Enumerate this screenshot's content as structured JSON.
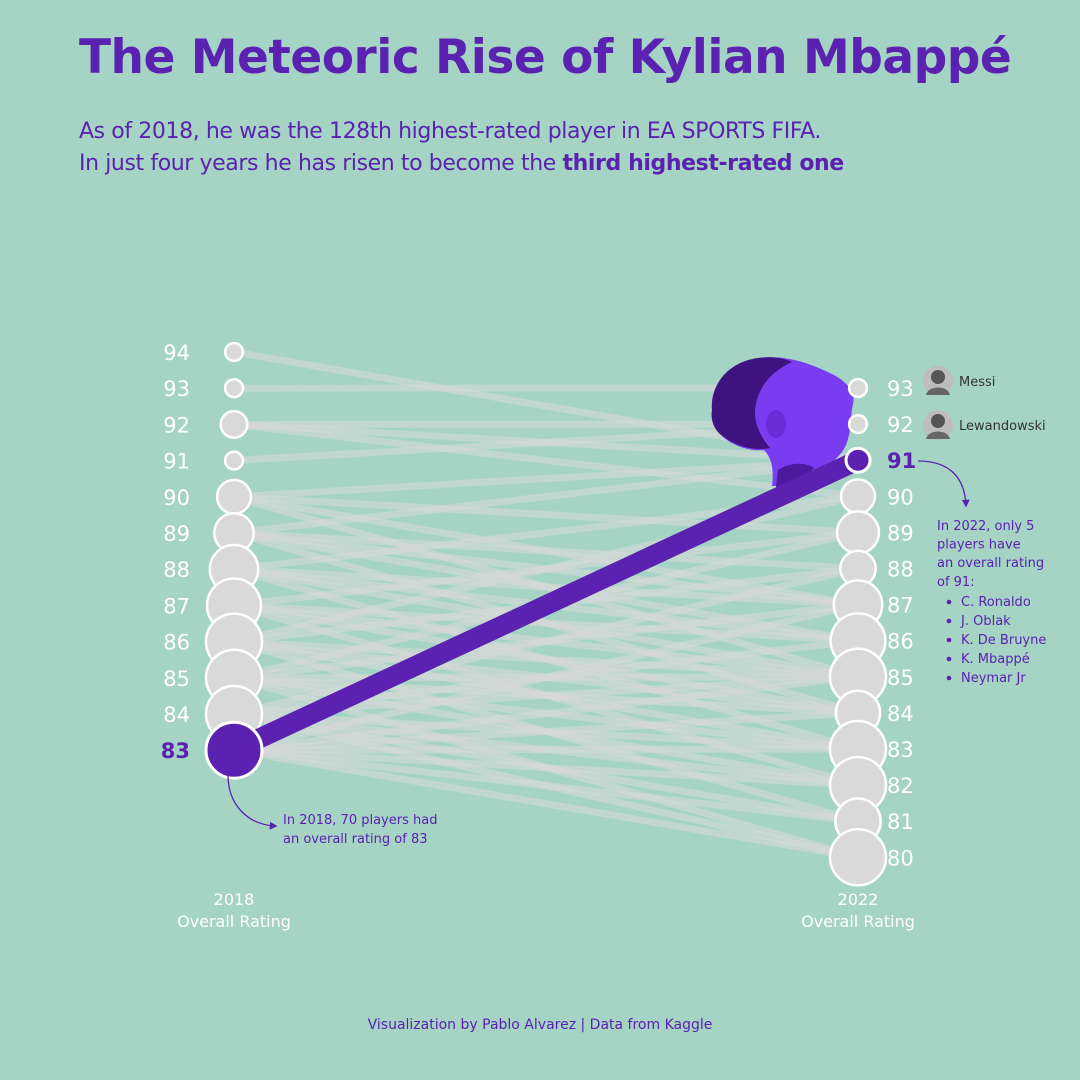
{
  "title": "The Meteoric Rise of Kylian Mbappé",
  "subtitle": {
    "line1": "As of 2018, he was the 128th highest-rated player in EA SPORTS FIFA.",
    "line2_prefix": "In just four years he has risen to become the ",
    "line2_bold": "third highest-rated one"
  },
  "footer": "Visualization by Pablo Alvarez | Data from Kaggle",
  "colors": {
    "background": "#a5d4c5",
    "accent": "#5b21b0",
    "node": "#d9d9d9",
    "link": "#d9d9d9",
    "text_light": "#ffffff"
  },
  "chart_data": {
    "type": "slope",
    "left_axis": {
      "line1": "2018",
      "line2": "Overall Rating",
      "ratings": [
        94,
        93,
        92,
        91,
        90,
        89,
        88,
        87,
        86,
        85,
        84,
        83
      ]
    },
    "right_axis": {
      "line1": "2022",
      "line2": "Overall Rating",
      "ratings": [
        93,
        92,
        91,
        90,
        89,
        88,
        87,
        86,
        85,
        84,
        83,
        82,
        81,
        80
      ]
    },
    "highlight": {
      "player": "K. Mbappé",
      "from": 83,
      "to": 91
    },
    "left_node_level": {
      "94": 1,
      "93": 1,
      "92": 4,
      "91": 1,
      "90": 8,
      "89": 12,
      "88": 20,
      "87": 26,
      "86": 35,
      "85": 40,
      "84": 60,
      "83": 70
    },
    "right_node_level": {
      "93": 1,
      "92": 1,
      "91": 5,
      "90": 8,
      "89": 14,
      "88": 9,
      "87": 20,
      "86": 27,
      "85": 40,
      "84": 16,
      "83": 31,
      "82": 35,
      "81": 17,
      "80": 36
    },
    "connections": [
      [
        94,
        91
      ],
      [
        93,
        93
      ],
      [
        92,
        92
      ],
      [
        92,
        91
      ],
      [
        92,
        90
      ],
      [
        91,
        92
      ],
      [
        90,
        91
      ],
      [
        90,
        89
      ],
      [
        90,
        87
      ],
      [
        90,
        85
      ],
      [
        89,
        91
      ],
      [
        89,
        88
      ],
      [
        89,
        87
      ],
      [
        89,
        86
      ],
      [
        89,
        84
      ],
      [
        88,
        90
      ],
      [
        88,
        87
      ],
      [
        88,
        86
      ],
      [
        88,
        85
      ],
      [
        88,
        83
      ],
      [
        87,
        89
      ],
      [
        87,
        86
      ],
      [
        87,
        85
      ],
      [
        87,
        84
      ],
      [
        87,
        82
      ],
      [
        86,
        90
      ],
      [
        86,
        88
      ],
      [
        86,
        85
      ],
      [
        86,
        84
      ],
      [
        86,
        83
      ],
      [
        86,
        81
      ],
      [
        85,
        89
      ],
      [
        85,
        87
      ],
      [
        85,
        85
      ],
      [
        85,
        84
      ],
      [
        85,
        83
      ],
      [
        85,
        82
      ],
      [
        85,
        80
      ],
      [
        84,
        88
      ],
      [
        84,
        86
      ],
      [
        84,
        85
      ],
      [
        84,
        83
      ],
      [
        84,
        82
      ],
      [
        84,
        81
      ],
      [
        84,
        80
      ],
      [
        83,
        87
      ],
      [
        83,
        85
      ],
      [
        83,
        84
      ],
      [
        83,
        83
      ],
      [
        83,
        82
      ],
      [
        83,
        81
      ],
      [
        83,
        80
      ]
    ],
    "players": [
      {
        "name": "Messi",
        "rating": 93
      },
      {
        "name": "Lewandowski",
        "rating": 92
      }
    ],
    "annotations": {
      "left": [
        "In 2018, 70 players had",
        "an overall rating of 83"
      ],
      "right_intro": [
        "In 2022, only 5",
        "players have",
        "an overall rating",
        "of 91:"
      ],
      "right_list": [
        "C. Ronaldo",
        "J. Oblak",
        "K. De Bruyne",
        "K. Mbappé",
        "Neymar Jr"
      ]
    }
  }
}
